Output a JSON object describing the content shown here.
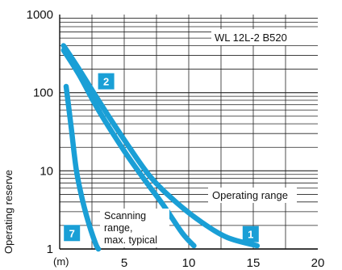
{
  "chart_data": {
    "type": "line",
    "title": "WL 12L-2 B520",
    "ylabel": "Operating reserve",
    "xunit": "(m)",
    "xlim": [
      0,
      20
    ],
    "ylim": [
      1,
      1000
    ],
    "yscale": "log",
    "x_ticks": [
      "5",
      "10",
      "15",
      "20"
    ],
    "y_ticks": [
      "1",
      "10",
      "100",
      "1000"
    ],
    "grid": true,
    "color": "#1a9fd6",
    "labels": {
      "operating_range": "Operating range",
      "scanning_range": [
        "Scanning",
        "range,",
        "max. typical"
      ]
    },
    "series": [
      {
        "badge": "1",
        "points": [
          [
            0.3,
            400
          ],
          [
            1.5,
            200
          ],
          [
            3,
            80
          ],
          [
            5,
            25
          ],
          [
            7,
            8.5
          ],
          [
            9,
            4
          ],
          [
            11,
            2.2
          ],
          [
            13,
            1.4
          ],
          [
            15.3,
            1.1
          ]
        ]
      },
      {
        "badge": "2",
        "points": [
          [
            0.3,
            350
          ],
          [
            1.5,
            170
          ],
          [
            3,
            60
          ],
          [
            5,
            18
          ],
          [
            6.5,
            8
          ],
          [
            8,
            3.7
          ],
          [
            9.5,
            1.6
          ],
          [
            10.4,
            1.1
          ]
        ]
      },
      {
        "badge": "7",
        "points": [
          [
            0.5,
            120
          ],
          [
            0.9,
            35
          ],
          [
            1.3,
            10
          ],
          [
            1.8,
            4
          ],
          [
            2.3,
            2
          ],
          [
            2.8,
            1.15
          ],
          [
            3.0,
            1.0
          ]
        ]
      }
    ]
  }
}
